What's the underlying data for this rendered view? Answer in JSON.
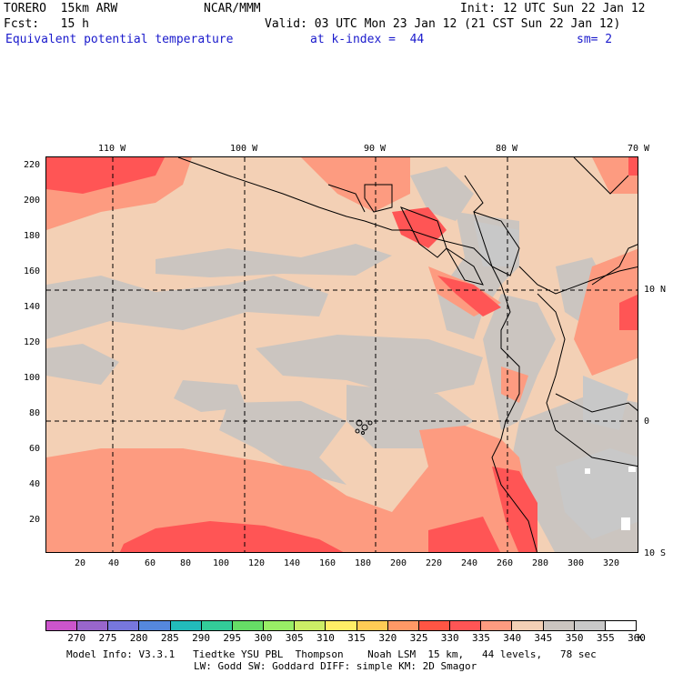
{
  "header": {
    "model": "TORERO  15km ARW",
    "org": "NCAR/MMM",
    "init": "Init: 12 UTC Sun 22 Jan 12",
    "fcst": "Fcst:   15 h",
    "valid": "Valid: 03 UTC Mon 23 Jan 12 (21 CST Sun 22 Jan 12)",
    "field": "Equivalent potential temperature",
    "level": "at k-index =  44",
    "smooth": "sm= 2"
  },
  "map": {
    "top_axis": [
      "110 W",
      "100 W",
      "90 W",
      "80 W",
      "70 W"
    ],
    "right_axis": [
      "10 N",
      "0",
      "10 S"
    ],
    "left_axis": [
      "220",
      "200",
      "180",
      "160",
      "140",
      "120",
      "100",
      "80",
      "60",
      "40",
      "20"
    ],
    "bottom_axis": [
      "20",
      "40",
      "60",
      "80",
      "100",
      "120",
      "140",
      "160",
      "180",
      "200",
      "220",
      "240",
      "260",
      "280",
      "300",
      "320"
    ]
  },
  "colorbar": {
    "labels": [
      "270",
      "275",
      "280",
      "285",
      "290",
      "295",
      "300",
      "305",
      "310",
      "315",
      "320",
      "325",
      "330",
      "335",
      "340",
      "345",
      "350",
      "355",
      "360",
      "K"
    ],
    "colors": [
      "#cc55cc",
      "#9966cc",
      "#7777dd",
      "#5588dd",
      "#22bbbb",
      "#33cc99",
      "#66dd66",
      "#99ee66",
      "#ccee66",
      "#ffee66",
      "#ffcc55",
      "#ff9966",
      "#ff5544",
      "#ff5555",
      "#fd9b80",
      "#f3d0b5",
      "#cbc5c0",
      "#c8c8c8",
      "#ffffff"
    ]
  },
  "footer": {
    "line1": "Model Info: V3.3.1   Tiedtke YSU PBL  Thompson    Noah LSM  15 km,   44 levels,   78 sec",
    "line2": "LW: Godd SW: Goddard DIFF: simple KM: 2D Smagor"
  }
}
